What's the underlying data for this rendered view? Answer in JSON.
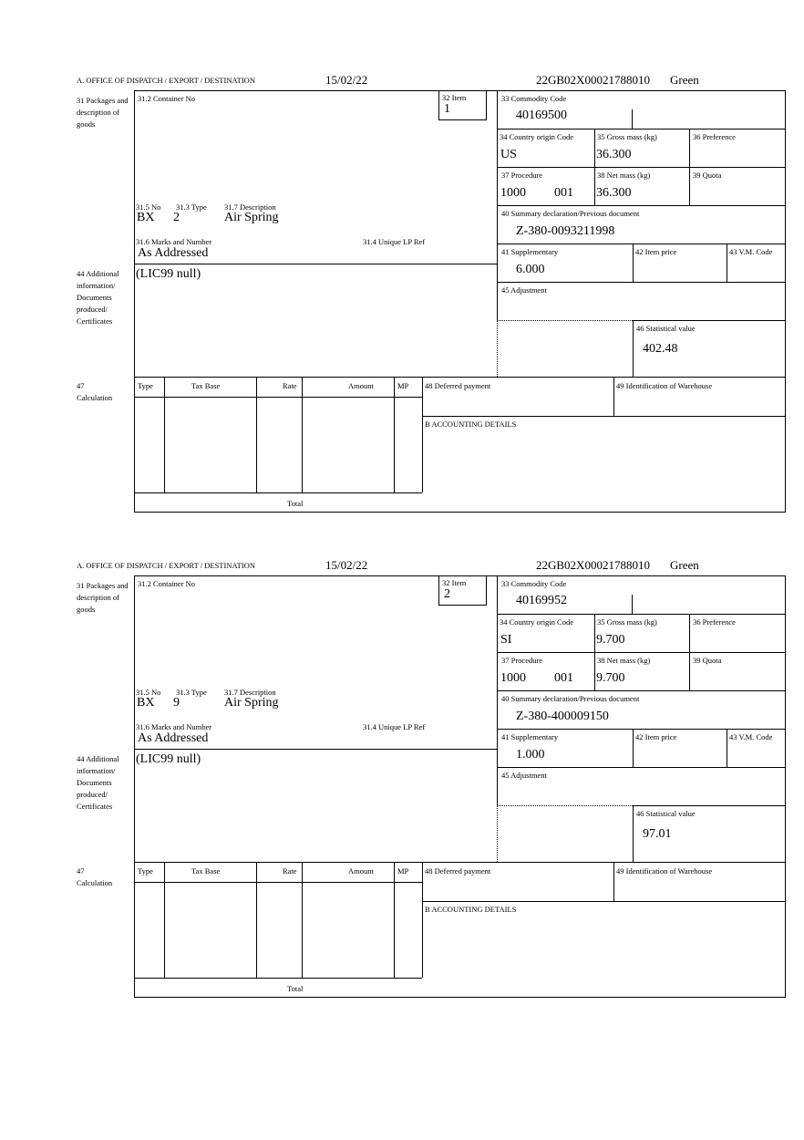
{
  "labels": {
    "office": "A.  OFFICE OF DISPATCH / EXPORT / DESTINATION",
    "packages": "31 Packages and description of goods",
    "container_no": "31.2 Container No",
    "item": "32 Item",
    "no": "31.5 No",
    "type": "31.3 Type",
    "description": "31.7 Description",
    "marks": "31.6 Marks and Number",
    "unique_lp_ref": "31.4 Unique LP Ref",
    "additional_info": "44 Additional information/ Documents produced/ Certificates",
    "commodity_code": "33 Commodity Code",
    "country_origin": "34 Country origin Code",
    "gross_mass": "35 Gross mass (kg)",
    "preference": "36 Preference",
    "procedure": "37 Procedure",
    "net_mass": "38 Net mass (kg)",
    "quota": "39 Quota",
    "summary_declaration": "40 Summary declaration/Previous document",
    "supplementary": "41 Supplementary",
    "item_price": "42 Item price",
    "vm_code": "43 V.M. Code",
    "adjustment": "45 Adjustment",
    "statistical_value": "46 Statistical value",
    "calculation_num": "47",
    "calculation": "Calculation",
    "col_type": "Type",
    "col_tax_base": "Tax Base",
    "col_rate": "Rate",
    "col_amount": "Amount",
    "col_mp": "MP",
    "deferred_payment": "48 Deferred payment",
    "warehouse": "49 Identification of Warehouse",
    "accounting": "B ACCOUNTING DETAILS",
    "total": "Total"
  },
  "items": [
    {
      "date": "15/02/22",
      "reference": "22GB02X00021788010",
      "route": "Green",
      "item_no": "1",
      "package_kind": "BX",
      "package_count": "2",
      "description": "Air Spring",
      "marks": "As Addressed",
      "additional_info": "(LIC99 null)",
      "commodity_code": "40169500",
      "country_origin": "US",
      "gross_mass": "36.300",
      "procedure": "1000",
      "procedure_extra": "001",
      "net_mass": "36.300",
      "previous_document": "Z-380-0093211998",
      "supplementary": "6.000",
      "statistical_value": "402.48"
    },
    {
      "date": "15/02/22",
      "reference": "22GB02X00021788010",
      "route": "Green",
      "item_no": "2",
      "package_kind": "BX",
      "package_count": "9",
      "description": "Air Spring",
      "marks": "As Addressed",
      "additional_info": "(LIC99 null)",
      "commodity_code": "40169952",
      "country_origin": "SI",
      "gross_mass": "9.700",
      "procedure": "1000",
      "procedure_extra": "001",
      "net_mass": "9.700",
      "previous_document": "Z-380-400009150",
      "supplementary": "1.000",
      "statistical_value": "97.01"
    }
  ]
}
